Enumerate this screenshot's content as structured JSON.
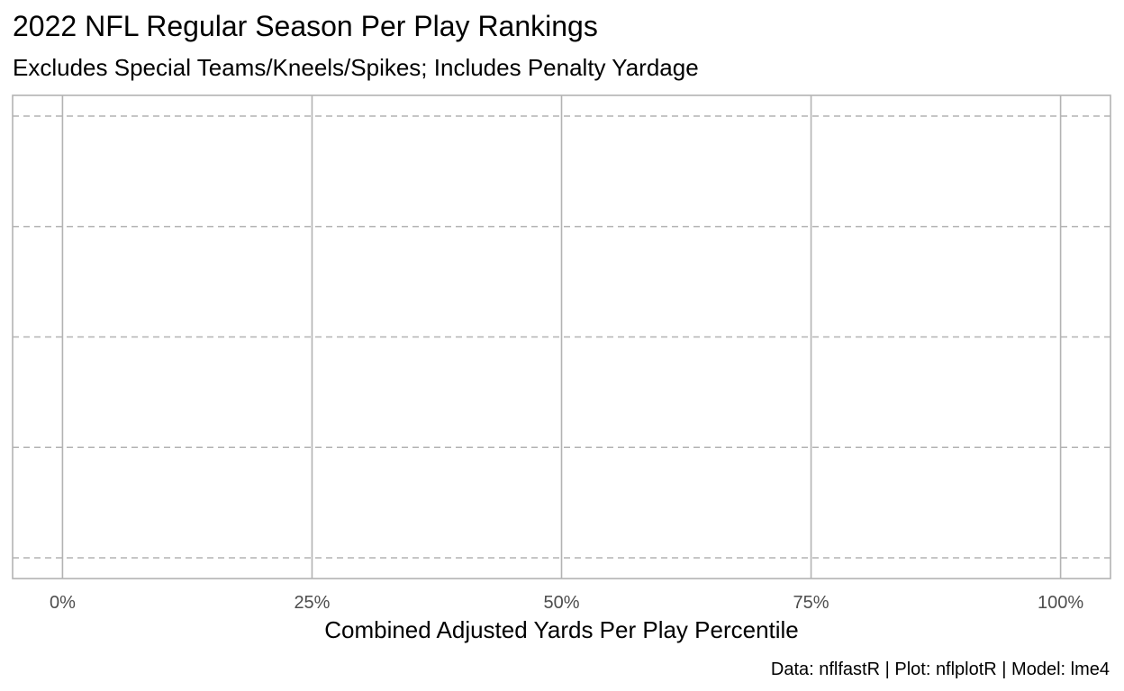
{
  "chart_data": {
    "type": "scatter",
    "title": "2022 NFL Regular Season Per Play Rankings",
    "subtitle": "Excludes Special Teams/Kneels/Spikes; Includes Penalty Yardage",
    "xlabel": "Combined Adjusted Yards Per Play Percentile",
    "ylabel": "",
    "xlim": [
      -0.05,
      1.05
    ],
    "x_ticks": [
      0,
      0.25,
      0.5,
      0.75,
      1
    ],
    "x_tick_labels": [
      "0%",
      "25%",
      "50%",
      "75%",
      "100%"
    ],
    "y_gridlines": 5,
    "grid": true,
    "series": [],
    "caption": "Data: nflfastR | Plot: nflplotR | Model: lme4",
    "colors": {
      "panel_border": "#b3b3b3",
      "grid_major_x": "#b3b3b3",
      "grid_y_dashed": "#b3b3b3",
      "tick_label": "#4d4d4d",
      "text": "#000000"
    }
  }
}
